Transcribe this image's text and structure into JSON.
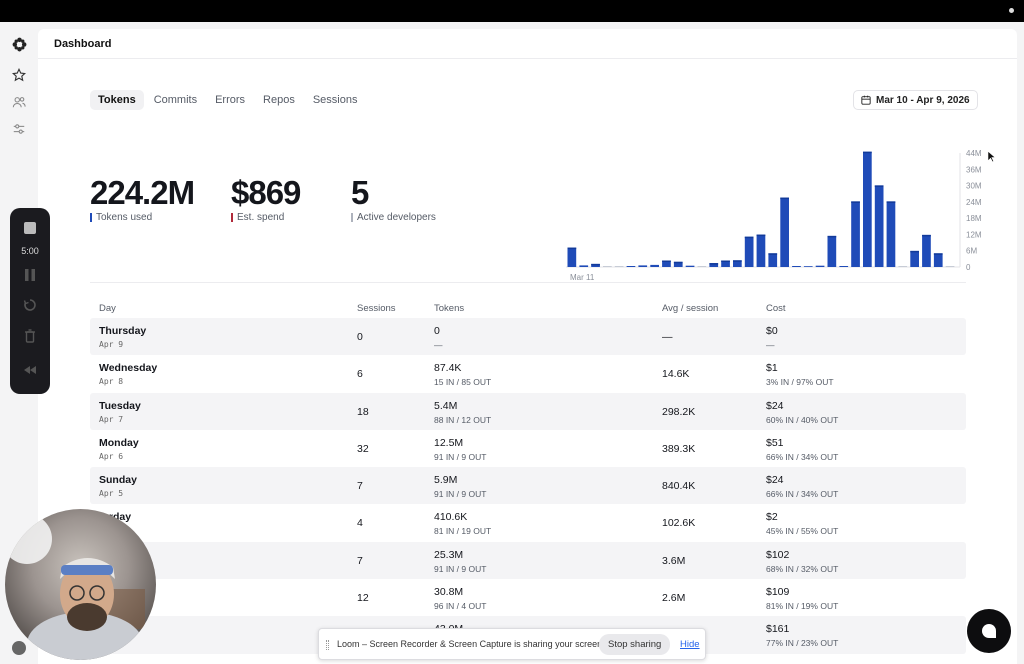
{
  "header": {
    "title": "Dashboard"
  },
  "tabs": [
    {
      "label": "Tokens",
      "active": true
    },
    {
      "label": "Commits",
      "active": false
    },
    {
      "label": "Errors",
      "active": false
    },
    {
      "label": "Repos",
      "active": false
    },
    {
      "label": "Sessions",
      "active": false
    }
  ],
  "date_range": {
    "label": "Mar 10 - Apr 9, 2026",
    "icon": "calendar-icon"
  },
  "stats": [
    {
      "value": "224.2M",
      "label": "Tokens used",
      "color": "#1f4bb8"
    },
    {
      "value": "$869",
      "label": "Est. spend",
      "color": "#b02a3a"
    },
    {
      "value": "5",
      "label": "Active developers",
      "color": "#aeb3bd"
    }
  ],
  "chart_data": {
    "type": "bar",
    "x_start_label": "Mar 11",
    "y_ticks": [
      "44M",
      "36M",
      "30M",
      "24M",
      "18M",
      "12M",
      "6M",
      "0"
    ],
    "ylim": [
      0,
      44
    ],
    "values": [
      7.5,
      0.6,
      1.2,
      0,
      0,
      0.4,
      0.6,
      0.8,
      2.5,
      2,
      0.5,
      0,
      1.5,
      2.5,
      2.6,
      11.7,
      12.5,
      5.3,
      26.8,
      0.4,
      0.3,
      0.5,
      12,
      0.4,
      25.3,
      44.5,
      31.5,
      25.3,
      0,
      6.2,
      12.4,
      5.3,
      0
    ],
    "color": "#1f4bb8",
    "secondary_color": "#b02a3a"
  },
  "table": {
    "columns": {
      "day": "Day",
      "sessions": "Sessions",
      "tokens": "Tokens",
      "avg": "Avg / session",
      "cost": "Cost"
    },
    "rows": [
      {
        "day": "Thursday",
        "date": "Apr 9",
        "sessions": "0",
        "tokens": "0",
        "tokens_sub": "—",
        "avg": "—",
        "cost": "$0",
        "cost_sub": "—"
      },
      {
        "day": "Wednesday",
        "date": "Apr 8",
        "sessions": "6",
        "tokens": "87.4K",
        "tokens_sub": "15 IN / 85 OUT",
        "avg": "14.6K",
        "cost": "$1",
        "cost_sub": "3% IN / 97% OUT"
      },
      {
        "day": "Tuesday",
        "date": "Apr 7",
        "sessions": "18",
        "tokens": "5.4M",
        "tokens_sub": "88 IN / 12 OUT",
        "avg": "298.2K",
        "cost": "$24",
        "cost_sub": "60% IN / 40% OUT"
      },
      {
        "day": "Monday",
        "date": "Apr 6",
        "sessions": "32",
        "tokens": "12.5M",
        "tokens_sub": "91 IN / 9 OUT",
        "avg": "389.3K",
        "cost": "$51",
        "cost_sub": "66% IN / 34% OUT"
      },
      {
        "day": "Sunday",
        "date": "Apr 5",
        "sessions": "7",
        "tokens": "5.9M",
        "tokens_sub": "91 IN / 9 OUT",
        "avg": "840.4K",
        "cost": "$24",
        "cost_sub": "66% IN / 34% OUT"
      },
      {
        "day": "turday",
        "date": "",
        "sessions": "4",
        "tokens": "410.6K",
        "tokens_sub": "81 IN / 19 OUT",
        "avg": "102.6K",
        "cost": "$2",
        "cost_sub": "45% IN / 55% OUT"
      },
      {
        "day": "",
        "date": "",
        "sessions": "7",
        "tokens": "25.3M",
        "tokens_sub": "91 IN / 9 OUT",
        "avg": "3.6M",
        "cost": "$102",
        "cost_sub": "68% IN / 32% OUT"
      },
      {
        "day": "",
        "date": "",
        "sessions": "12",
        "tokens": "30.8M",
        "tokens_sub": "96 IN / 4 OUT",
        "avg": "2.6M",
        "cost": "$109",
        "cost_sub": "81% IN / 19% OUT"
      },
      {
        "day": "sday",
        "date": "",
        "sessions": "",
        "tokens": "43.0M",
        "tokens_sub": "",
        "avg": "",
        "cost": "$161",
        "cost_sub": "77% IN / 23% OUT"
      }
    ]
  },
  "loom": {
    "timer": "5:00",
    "share_message": "Loom – Screen Recorder & Screen Capture is sharing your screen.",
    "stop_label": "Stop sharing",
    "hide_label": "Hide"
  }
}
